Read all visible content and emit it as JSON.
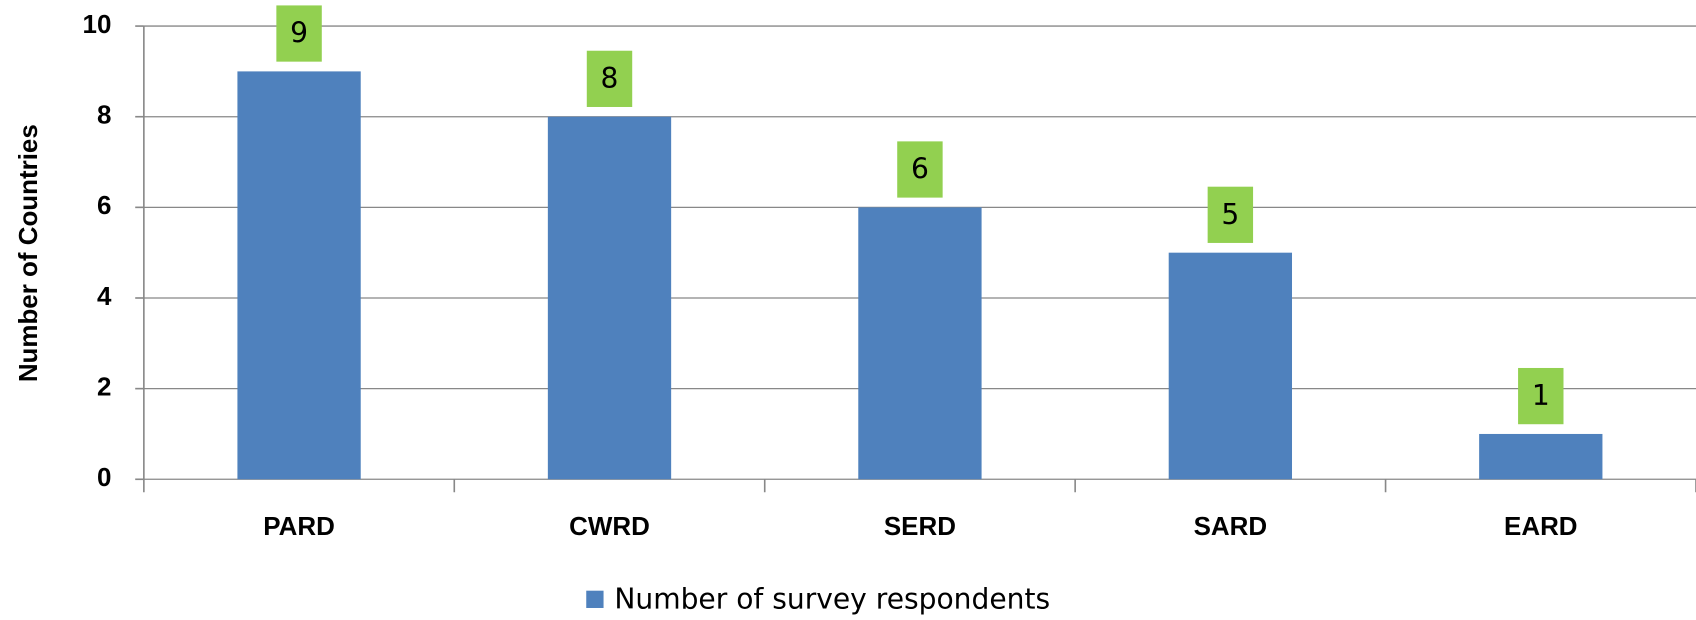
{
  "chart_data": {
    "type": "bar",
    "y_label": "Number of Countries",
    "categories": [
      "PARD",
      "CWRD",
      "SERD",
      "SARD",
      "EARD"
    ],
    "series": [
      {
        "name": "Number of survey respondents",
        "color": "#4f81bd",
        "values": [
          9,
          8,
          6,
          5,
          1
        ]
      }
    ],
    "label_color": "#92d050",
    "ylim": [
      0,
      10
    ],
    "yticks": [
      0,
      2,
      4,
      6,
      8,
      10
    ],
    "grid": true,
    "legend": "bottom"
  }
}
